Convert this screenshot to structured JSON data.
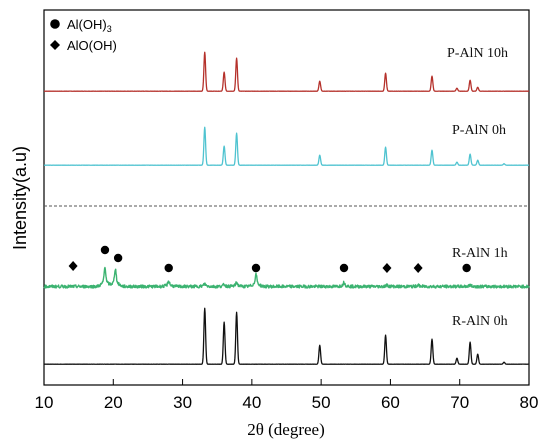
{
  "chart_data": {
    "type": "line",
    "xlabel": "2θ (degree)",
    "ylabel": "Intensity(a.u)",
    "xlim": [
      10,
      80
    ],
    "xticks": [
      10,
      20,
      30,
      40,
      50,
      60,
      70,
      80
    ],
    "legend": {
      "position": "top-left",
      "entries": [
        {
          "marker": "circle",
          "label": "Al(OH)",
          "subscript": "3"
        },
        {
          "marker": "diamond",
          "label": "AlO(OH)"
        }
      ]
    },
    "series": [
      {
        "name": "P-AlN 10h",
        "color": "#b5312b",
        "baseline": 0.8,
        "noise": 0.03,
        "peaks": [
          [
            33.2,
            39
          ],
          [
            36.0,
            19
          ],
          [
            37.8,
            33
          ],
          [
            49.8,
            10
          ],
          [
            59.3,
            18
          ],
          [
            66.0,
            15
          ],
          [
            69.6,
            3
          ],
          [
            71.5,
            11
          ],
          [
            72.6,
            4
          ]
        ]
      },
      {
        "name": "P-AlN 0h",
        "color": "#4fc3d0",
        "baseline": 0.8,
        "noise": 0.03,
        "peaks": [
          [
            33.2,
            38
          ],
          [
            36.0,
            19
          ],
          [
            37.8,
            32
          ],
          [
            49.8,
            10
          ],
          [
            59.3,
            18
          ],
          [
            66.0,
            15
          ],
          [
            69.6,
            3
          ],
          [
            71.5,
            11
          ],
          [
            72.6,
            5
          ],
          [
            76.4,
            1.5
          ]
        ]
      },
      {
        "name": "R-AlN 1h",
        "color": "#3cb371",
        "baseline": 2.5,
        "noise": 0.5,
        "peaks": [
          [
            18.8,
            14
          ],
          [
            20.3,
            13
          ],
          [
            28.0,
            4
          ],
          [
            33.2,
            2
          ],
          [
            36.0,
            1.5
          ],
          [
            37.8,
            3
          ],
          [
            40.6,
            9
          ],
          [
            53.3,
            3
          ],
          [
            59.5,
            1
          ],
          [
            64.0,
            1
          ],
          [
            71.5,
            1
          ]
        ],
        "markers": [
          {
            "x": 14.2,
            "shape": "diamond"
          },
          {
            "x": 18.8,
            "shape": "circle"
          },
          {
            "x": 20.7,
            "shape": "circle"
          },
          {
            "x": 28.0,
            "shape": "circle"
          },
          {
            "x": 40.6,
            "shape": "circle"
          },
          {
            "x": 53.3,
            "shape": "circle"
          },
          {
            "x": 59.5,
            "shape": "diamond"
          },
          {
            "x": 64.0,
            "shape": "diamond"
          },
          {
            "x": 71.0,
            "shape": "circle"
          }
        ]
      },
      {
        "name": "R-AlN 0h",
        "color": "#111111",
        "baseline": 0.8,
        "noise": 0.03,
        "peaks": [
          [
            33.2,
            56
          ],
          [
            36.0,
            42
          ],
          [
            37.8,
            52
          ],
          [
            49.8,
            19
          ],
          [
            59.3,
            29
          ],
          [
            66.0,
            25
          ],
          [
            69.6,
            6
          ],
          [
            71.5,
            22
          ],
          [
            72.6,
            10
          ],
          [
            76.4,
            2
          ]
        ]
      }
    ],
    "separator": {
      "style": "dashed",
      "color": "#555555"
    },
    "grid": false
  }
}
